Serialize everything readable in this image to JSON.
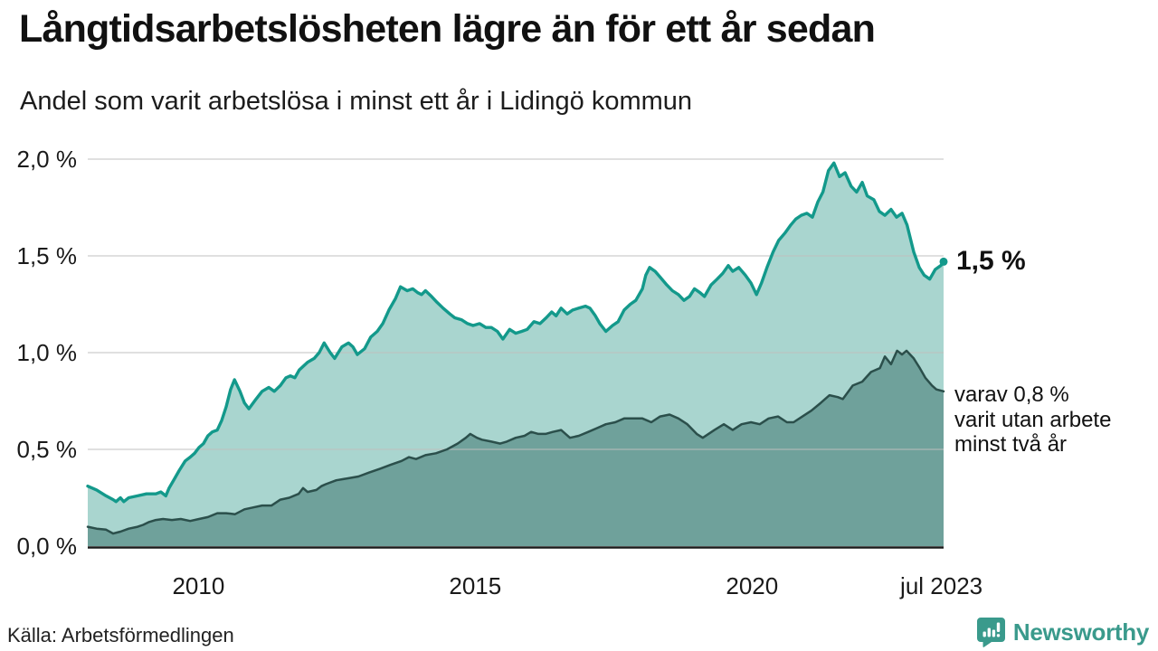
{
  "header": {
    "title": "Långtidsarbetslösheten lägre än för ett år sedan",
    "subtitle": "Andel som varit arbetslösa i minst ett år i Lidingö kommun"
  },
  "annotations": {
    "latest_value_label": "1,5 %",
    "secondary_label": "varav 0,8 %\nvarit utan arbete\nminst två år"
  },
  "footer": {
    "source": "Källa: Arbetsförmedlingen",
    "brand": "Newsworthy"
  },
  "colors": {
    "line_primary": "#13998b",
    "fill_primary": "#a9d5cf",
    "line_secondary": "#2b4f4b",
    "fill_secondary": "#6fa19b",
    "gridline": "#d9d9d9",
    "axis": "#1a1a1a",
    "brand_teal": "#3a9a8c"
  },
  "chart_data": {
    "type": "area",
    "title": "Långtidsarbetslösheten lägre än för ett år sedan",
    "subtitle": "Andel som varit arbetslösa i minst ett år i Lidingö kommun",
    "unit": "%",
    "grid": "horizontal",
    "legend_position": "direct-labels-right",
    "x_domain": [
      2008.0,
      2023.46
    ],
    "ylim": [
      0,
      2.0
    ],
    "y_ticks": [
      {
        "v": 0.0,
        "label": "0,0 %"
      },
      {
        "v": 0.5,
        "label": "0,5 %"
      },
      {
        "v": 1.0,
        "label": "1,0 %"
      },
      {
        "v": 1.5,
        "label": "1,5 %"
      },
      {
        "v": 2.0,
        "label": "2,0 %"
      }
    ],
    "x_ticks": [
      {
        "t": 2010.0,
        "label": "2010"
      },
      {
        "t": 2015.0,
        "label": "2015"
      },
      {
        "t": 2020.0,
        "label": "2020"
      },
      {
        "t": 2023.42,
        "label": "jul 2023"
      }
    ],
    "series": [
      {
        "name": "Andel arbetslösa minst ett år",
        "dataname": "share-one-year",
        "color": "#13998b",
        "fill": "#a9d5cf",
        "latest_value": "1,5 %",
        "points": [
          [
            2008.0,
            0.31
          ],
          [
            2008.16,
            0.29
          ],
          [
            2008.33,
            0.26
          ],
          [
            2008.46,
            0.24
          ],
          [
            2008.51,
            0.23
          ],
          [
            2008.59,
            0.25
          ],
          [
            2008.65,
            0.23
          ],
          [
            2008.74,
            0.25
          ],
          [
            2008.9,
            0.26
          ],
          [
            2009.06,
            0.27
          ],
          [
            2009.23,
            0.27
          ],
          [
            2009.32,
            0.28
          ],
          [
            2009.41,
            0.26
          ],
          [
            2009.47,
            0.3
          ],
          [
            2009.57,
            0.35
          ],
          [
            2009.65,
            0.39
          ],
          [
            2009.76,
            0.44
          ],
          [
            2009.85,
            0.46
          ],
          [
            2009.93,
            0.48
          ],
          [
            2010.01,
            0.51
          ],
          [
            2010.09,
            0.53
          ],
          [
            2010.17,
            0.57
          ],
          [
            2010.25,
            0.59
          ],
          [
            2010.34,
            0.6
          ],
          [
            2010.42,
            0.65
          ],
          [
            2010.5,
            0.72
          ],
          [
            2010.58,
            0.81
          ],
          [
            2010.65,
            0.86
          ],
          [
            2010.75,
            0.8
          ],
          [
            2010.83,
            0.74
          ],
          [
            2010.91,
            0.71
          ],
          [
            2011.04,
            0.76
          ],
          [
            2011.15,
            0.8
          ],
          [
            2011.27,
            0.82
          ],
          [
            2011.37,
            0.8
          ],
          [
            2011.48,
            0.83
          ],
          [
            2011.58,
            0.87
          ],
          [
            2011.66,
            0.88
          ],
          [
            2011.74,
            0.87
          ],
          [
            2011.82,
            0.91
          ],
          [
            2011.97,
            0.95
          ],
          [
            2012.09,
            0.97
          ],
          [
            2012.18,
            1.0
          ],
          [
            2012.27,
            1.05
          ],
          [
            2012.38,
            1.0
          ],
          [
            2012.46,
            0.97
          ],
          [
            2012.59,
            1.03
          ],
          [
            2012.71,
            1.05
          ],
          [
            2012.79,
            1.03
          ],
          [
            2012.87,
            0.99
          ],
          [
            2013.0,
            1.02
          ],
          [
            2013.11,
            1.08
          ],
          [
            2013.23,
            1.11
          ],
          [
            2013.33,
            1.15
          ],
          [
            2013.44,
            1.22
          ],
          [
            2013.56,
            1.28
          ],
          [
            2013.65,
            1.34
          ],
          [
            2013.77,
            1.32
          ],
          [
            2013.87,
            1.33
          ],
          [
            2013.96,
            1.31
          ],
          [
            2014.03,
            1.3
          ],
          [
            2014.1,
            1.32
          ],
          [
            2014.21,
            1.29
          ],
          [
            2014.31,
            1.26
          ],
          [
            2014.42,
            1.23
          ],
          [
            2014.54,
            1.2
          ],
          [
            2014.63,
            1.18
          ],
          [
            2014.75,
            1.17
          ],
          [
            2014.86,
            1.15
          ],
          [
            2014.96,
            1.14
          ],
          [
            2015.08,
            1.15
          ],
          [
            2015.19,
            1.13
          ],
          [
            2015.29,
            1.13
          ],
          [
            2015.4,
            1.11
          ],
          [
            2015.5,
            1.07
          ],
          [
            2015.62,
            1.12
          ],
          [
            2015.73,
            1.1
          ],
          [
            2015.84,
            1.11
          ],
          [
            2015.94,
            1.12
          ],
          [
            2016.06,
            1.16
          ],
          [
            2016.17,
            1.15
          ],
          [
            2016.28,
            1.18
          ],
          [
            2016.38,
            1.21
          ],
          [
            2016.46,
            1.19
          ],
          [
            2016.55,
            1.23
          ],
          [
            2016.66,
            1.2
          ],
          [
            2016.76,
            1.22
          ],
          [
            2016.87,
            1.23
          ],
          [
            2016.99,
            1.24
          ],
          [
            2017.07,
            1.23
          ],
          [
            2017.17,
            1.19
          ],
          [
            2017.25,
            1.15
          ],
          [
            2017.36,
            1.11
          ],
          [
            2017.48,
            1.14
          ],
          [
            2017.58,
            1.16
          ],
          [
            2017.69,
            1.22
          ],
          [
            2017.8,
            1.25
          ],
          [
            2017.9,
            1.27
          ],
          [
            2018.02,
            1.33
          ],
          [
            2018.08,
            1.4
          ],
          [
            2018.15,
            1.44
          ],
          [
            2018.25,
            1.42
          ],
          [
            2018.34,
            1.39
          ],
          [
            2018.46,
            1.35
          ],
          [
            2018.56,
            1.32
          ],
          [
            2018.67,
            1.3
          ],
          [
            2018.77,
            1.27
          ],
          [
            2018.87,
            1.29
          ],
          [
            2018.96,
            1.33
          ],
          [
            2019.06,
            1.31
          ],
          [
            2019.14,
            1.29
          ],
          [
            2019.26,
            1.35
          ],
          [
            2019.37,
            1.38
          ],
          [
            2019.47,
            1.41
          ],
          [
            2019.57,
            1.45
          ],
          [
            2019.65,
            1.42
          ],
          [
            2019.76,
            1.44
          ],
          [
            2019.88,
            1.4
          ],
          [
            2019.98,
            1.36
          ],
          [
            2020.08,
            1.3
          ],
          [
            2020.17,
            1.36
          ],
          [
            2020.27,
            1.44
          ],
          [
            2020.38,
            1.52
          ],
          [
            2020.48,
            1.58
          ],
          [
            2020.6,
            1.62
          ],
          [
            2020.7,
            1.66
          ],
          [
            2020.79,
            1.69
          ],
          [
            2020.89,
            1.71
          ],
          [
            2020.99,
            1.72
          ],
          [
            2021.09,
            1.7
          ],
          [
            2021.19,
            1.78
          ],
          [
            2021.28,
            1.83
          ],
          [
            2021.38,
            1.94
          ],
          [
            2021.48,
            1.98
          ],
          [
            2021.58,
            1.91
          ],
          [
            2021.68,
            1.93
          ],
          [
            2021.79,
            1.86
          ],
          [
            2021.89,
            1.83
          ],
          [
            2021.99,
            1.88
          ],
          [
            2022.08,
            1.81
          ],
          [
            2022.2,
            1.79
          ],
          [
            2022.3,
            1.73
          ],
          [
            2022.4,
            1.71
          ],
          [
            2022.51,
            1.74
          ],
          [
            2022.61,
            1.7
          ],
          [
            2022.71,
            1.72
          ],
          [
            2022.8,
            1.66
          ],
          [
            2022.92,
            1.52
          ],
          [
            2023.02,
            1.44
          ],
          [
            2023.11,
            1.4
          ],
          [
            2023.21,
            1.38
          ],
          [
            2023.31,
            1.43
          ],
          [
            2023.41,
            1.45
          ],
          [
            2023.46,
            1.47
          ]
        ]
      },
      {
        "name": "Andel arbetslösa minst två år",
        "dataname": "share-two-years",
        "color": "#2b4f4b",
        "fill": "#6fa19b",
        "latest_value": "0,8 %",
        "points": [
          [
            2008.0,
            0.1
          ],
          [
            2008.16,
            0.09
          ],
          [
            2008.33,
            0.085
          ],
          [
            2008.46,
            0.065
          ],
          [
            2008.59,
            0.075
          ],
          [
            2008.74,
            0.09
          ],
          [
            2008.9,
            0.1
          ],
          [
            2009.0,
            0.11
          ],
          [
            2009.11,
            0.125
          ],
          [
            2009.23,
            0.135
          ],
          [
            2009.36,
            0.14
          ],
          [
            2009.52,
            0.135
          ],
          [
            2009.68,
            0.14
          ],
          [
            2009.85,
            0.13
          ],
          [
            2010.01,
            0.14
          ],
          [
            2010.17,
            0.15
          ],
          [
            2010.34,
            0.17
          ],
          [
            2010.5,
            0.17
          ],
          [
            2010.66,
            0.165
          ],
          [
            2010.83,
            0.19
          ],
          [
            2010.99,
            0.2
          ],
          [
            2011.15,
            0.21
          ],
          [
            2011.32,
            0.21
          ],
          [
            2011.48,
            0.24
          ],
          [
            2011.64,
            0.25
          ],
          [
            2011.81,
            0.27
          ],
          [
            2011.89,
            0.3
          ],
          [
            2011.97,
            0.28
          ],
          [
            2012.13,
            0.29
          ],
          [
            2012.22,
            0.31
          ],
          [
            2012.3,
            0.32
          ],
          [
            2012.49,
            0.34
          ],
          [
            2012.69,
            0.35
          ],
          [
            2012.89,
            0.36
          ],
          [
            2013.08,
            0.38
          ],
          [
            2013.28,
            0.4
          ],
          [
            2013.47,
            0.42
          ],
          [
            2013.67,
            0.44
          ],
          [
            2013.8,
            0.46
          ],
          [
            2013.93,
            0.45
          ],
          [
            2014.1,
            0.47
          ],
          [
            2014.29,
            0.48
          ],
          [
            2014.49,
            0.5
          ],
          [
            2014.68,
            0.53
          ],
          [
            2014.83,
            0.56
          ],
          [
            2014.91,
            0.58
          ],
          [
            2015.03,
            0.56
          ],
          [
            2015.12,
            0.55
          ],
          [
            2015.29,
            0.54
          ],
          [
            2015.45,
            0.53
          ],
          [
            2015.57,
            0.54
          ],
          [
            2015.73,
            0.56
          ],
          [
            2015.89,
            0.57
          ],
          [
            2016.01,
            0.59
          ],
          [
            2016.14,
            0.58
          ],
          [
            2016.27,
            0.58
          ],
          [
            2016.4,
            0.59
          ],
          [
            2016.55,
            0.6
          ],
          [
            2016.71,
            0.56
          ],
          [
            2016.87,
            0.57
          ],
          [
            2017.04,
            0.59
          ],
          [
            2017.2,
            0.61
          ],
          [
            2017.36,
            0.63
          ],
          [
            2017.53,
            0.64
          ],
          [
            2017.69,
            0.66
          ],
          [
            2017.85,
            0.66
          ],
          [
            2018.02,
            0.66
          ],
          [
            2018.18,
            0.64
          ],
          [
            2018.34,
            0.67
          ],
          [
            2018.51,
            0.68
          ],
          [
            2018.67,
            0.66
          ],
          [
            2018.83,
            0.63
          ],
          [
            2019.0,
            0.58
          ],
          [
            2019.11,
            0.56
          ],
          [
            2019.32,
            0.6
          ],
          [
            2019.49,
            0.63
          ],
          [
            2019.65,
            0.6
          ],
          [
            2019.81,
            0.63
          ],
          [
            2019.98,
            0.64
          ],
          [
            2020.14,
            0.63
          ],
          [
            2020.3,
            0.66
          ],
          [
            2020.47,
            0.67
          ],
          [
            2020.63,
            0.64
          ],
          [
            2020.75,
            0.64
          ],
          [
            2020.91,
            0.67
          ],
          [
            2021.07,
            0.7
          ],
          [
            2021.24,
            0.74
          ],
          [
            2021.4,
            0.78
          ],
          [
            2021.55,
            0.77
          ],
          [
            2021.64,
            0.76
          ],
          [
            2021.82,
            0.83
          ],
          [
            2021.99,
            0.85
          ],
          [
            2022.15,
            0.9
          ],
          [
            2022.31,
            0.92
          ],
          [
            2022.4,
            0.98
          ],
          [
            2022.51,
            0.94
          ],
          [
            2022.62,
            1.01
          ],
          [
            2022.71,
            0.99
          ],
          [
            2022.79,
            1.01
          ],
          [
            2022.92,
            0.97
          ],
          [
            2023.03,
            0.92
          ],
          [
            2023.13,
            0.87
          ],
          [
            2023.25,
            0.83
          ],
          [
            2023.33,
            0.81
          ],
          [
            2023.46,
            0.8
          ]
        ]
      }
    ]
  }
}
